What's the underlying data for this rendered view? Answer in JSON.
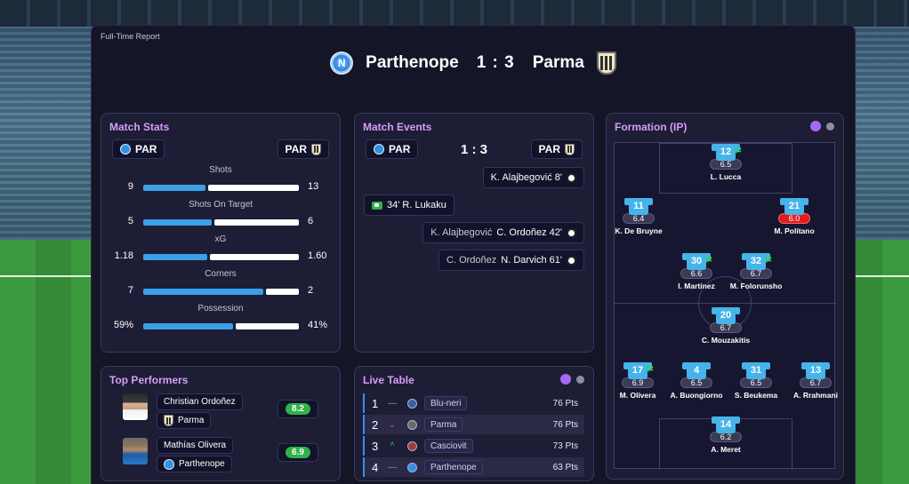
{
  "report_label": "Full-Time Report",
  "match": {
    "home": "Parthenope",
    "score": "1 : 3",
    "away": "Parma"
  },
  "match_stats": {
    "title": "Match Stats",
    "home_abbr": "PAR",
    "away_abbr": "PAR",
    "stats": [
      {
        "label": "Shots",
        "home": "9",
        "away": "13",
        "home_share": 0.41
      },
      {
        "label": "Shots On Target",
        "home": "5",
        "away": "6",
        "home_share": 0.45
      },
      {
        "label": "xG",
        "home": "1.18",
        "away": "1.60",
        "home_share": 0.42
      },
      {
        "label": "Corners",
        "home": "7",
        "away": "2",
        "home_share": 0.78
      },
      {
        "label": "Possession",
        "home": "59%",
        "away": "41%",
        "home_share": 0.59
      }
    ]
  },
  "match_events": {
    "title": "Match Events",
    "home_abbr": "PAR",
    "away_abbr": "PAR",
    "score": "1 : 3",
    "events": [
      {
        "side": "away",
        "assist": "",
        "text": "K. Alajbegović 8'",
        "icon": "ball-icon"
      },
      {
        "side": "home",
        "assist": "",
        "text": "34' R. Lukaku",
        "icon": "ball-icon"
      },
      {
        "side": "away",
        "assist": "K. Alajbegović",
        "text": "C. Ordoñez 42'",
        "icon": "ball-icon"
      },
      {
        "side": "away",
        "assist": "C. Ordoñez",
        "text": "N. Darvich 61'",
        "icon": "ball-icon"
      }
    ]
  },
  "top_performers": {
    "title": "Top Performers",
    "players": [
      {
        "name": "Christian Ordoñez",
        "club": "Parma",
        "rating": "8.2"
      },
      {
        "name": "Mathías Olivera",
        "club": "Parthenope",
        "rating": "6.9"
      }
    ]
  },
  "live_table": {
    "title": "Live Table",
    "rows": [
      {
        "pos": "1",
        "move": "—",
        "team": "Blu-neri",
        "pts": "76 Pts"
      },
      {
        "pos": "2",
        "move": "⌄",
        "team": "Parma",
        "pts": "76 Pts"
      },
      {
        "pos": "3",
        "move": "^",
        "team": "Casciovit",
        "pts": "73 Pts"
      },
      {
        "pos": "4",
        "move": "—",
        "team": "Parthenope",
        "pts": "63 Pts"
      }
    ]
  },
  "formation": {
    "title": "Formation (IP)",
    "players": [
      {
        "num": "12",
        "rating": "6.5",
        "name": "L. Lucca",
        "sub": true,
        "bad": false
      },
      {
        "num": "11",
        "rating": "6.4",
        "name": "K. De Bruyne",
        "sub": false,
        "bad": false
      },
      {
        "num": "21",
        "rating": "6.0",
        "name": "M. Politano",
        "sub": false,
        "bad": true
      },
      {
        "num": "30",
        "rating": "6.6",
        "name": "I. Martínez",
        "sub": true,
        "bad": false
      },
      {
        "num": "32",
        "rating": "6.7",
        "name": "M. Folorunsho",
        "sub": true,
        "bad": false
      },
      {
        "num": "20",
        "rating": "6.7",
        "name": "C. Mouzakitis",
        "sub": false,
        "bad": false
      },
      {
        "num": "17",
        "rating": "6.9",
        "name": "M. Olivera",
        "sub": true,
        "bad": false
      },
      {
        "num": "4",
        "rating": "6.5",
        "name": "A. Buongiorno",
        "sub": false,
        "bad": false
      },
      {
        "num": "31",
        "rating": "6.5",
        "name": "S. Beukema",
        "sub": false,
        "bad": false
      },
      {
        "num": "13",
        "rating": "6.7",
        "name": "A. Rrahmani",
        "sub": false,
        "bad": false
      },
      {
        "num": "14",
        "rating": "6.2",
        "name": "A. Meret",
        "sub": false,
        "bad": false
      }
    ]
  },
  "colors": {
    "accent": "#d59ef5",
    "home_bar": "#3aa0e8",
    "panel": "#1d1d36",
    "dot_active": "#a66af0",
    "dot_inactive": "#8e8e9e"
  }
}
